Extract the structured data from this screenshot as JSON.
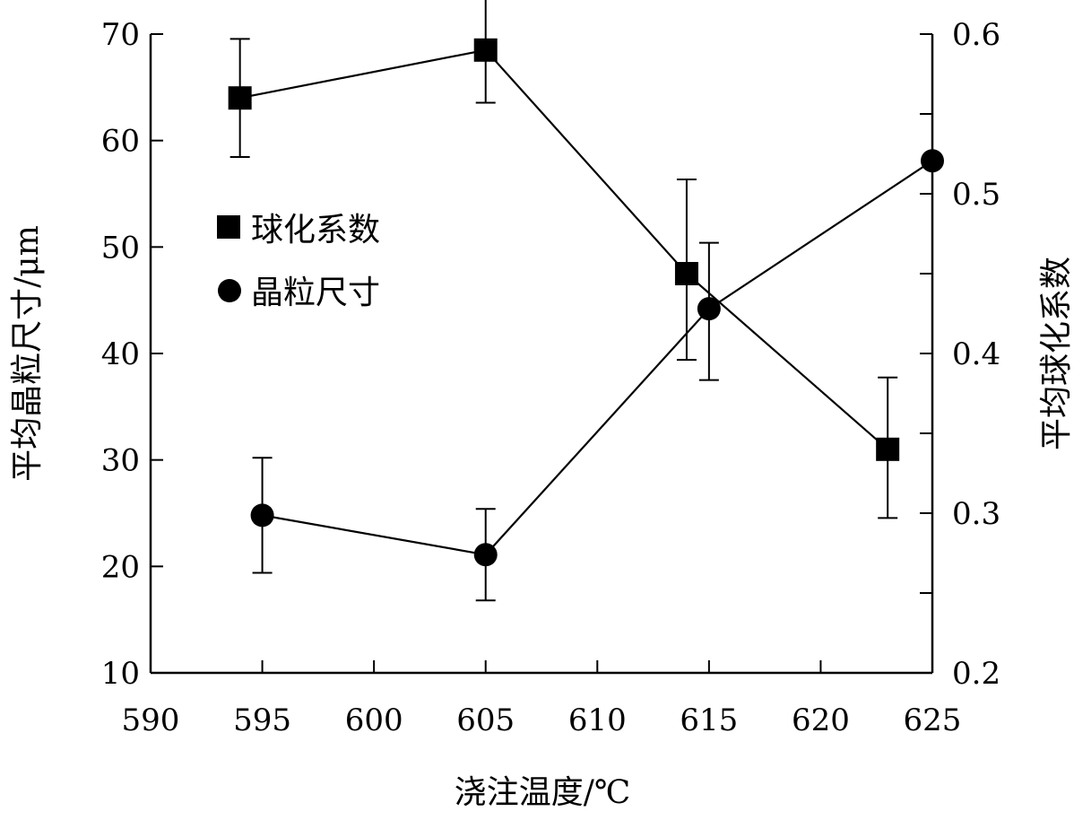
{
  "chart_data": {
    "type": "line",
    "title": "",
    "xlabel": "浇注温度/℃",
    "ylabel_left": "平均晶粒尺寸/μm",
    "ylabel_right": "平均球化系数",
    "xlim": [
      590,
      625
    ],
    "ylim_left": [
      10,
      70
    ],
    "ylim_right": [
      0.2,
      0.6
    ],
    "x_ticks": [
      590,
      595,
      600,
      605,
      610,
      615,
      620,
      625
    ],
    "y_ticks_left": [
      10,
      20,
      30,
      40,
      50,
      60,
      70
    ],
    "y_ticks_right": [
      0.2,
      0.3,
      0.4,
      0.5,
      0.6
    ],
    "grid": false,
    "legend_position": "left-middle",
    "series": [
      {
        "name": "球化系数",
        "marker": "square",
        "axis": "right",
        "x": [
          594,
          605,
          614,
          623
        ],
        "y": [
          0.56,
          0.59,
          0.45,
          0.34
        ],
        "err_low": [
          0.523,
          0.557,
          0.396,
          0.297
        ],
        "err_high": [
          0.597,
          0.627,
          0.509,
          0.385
        ]
      },
      {
        "name": "晶粒尺寸",
        "marker": "circle",
        "axis": "left",
        "x": [
          595,
          605,
          615,
          625
        ],
        "y": [
          24.8,
          21.1,
          44.2,
          58.1
        ],
        "err_low": [
          19.4,
          16.8,
          37.5,
          null
        ],
        "err_high": [
          30.2,
          25.4,
          50.4,
          null
        ]
      }
    ]
  }
}
